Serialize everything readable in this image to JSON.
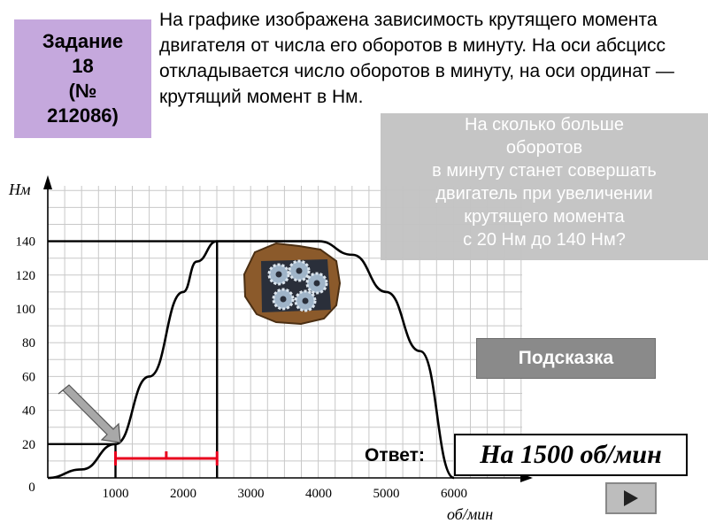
{
  "task": {
    "line1": "Задание",
    "line2": "18",
    "line3": "(№",
    "line4": "212086)"
  },
  "problem": {
    "text": "На графике изображена зависимость крутящего момента двигателя от числа его оборотов в минуту. На оси абсцисс откладывается число оборотов в минуту, на оси ординат — крутящий момент в Нм."
  },
  "question": {
    "lines": [
      "На сколько больше",
      "оборотов",
      "в минуту станет совершать",
      "двигатель при увеличении",
      "крутящего момента",
      "с 20 Нм до 140 Нм?"
    ]
  },
  "hint_label": "Подсказка",
  "answer": {
    "label": "Ответ:",
    "value": "На 1500 об/мин"
  },
  "next_icon": "play-right-icon",
  "colors": {
    "task_box": "#c5a8dd",
    "question_box": "#c3c3c3",
    "hint_button": "#8a8a8a",
    "bracket": "#e8001c"
  },
  "chart_data": {
    "type": "line",
    "xlabel": "об/мин",
    "ylabel": "Нм",
    "xlim": [
      0,
      6400
    ],
    "ylim": [
      0,
      150
    ],
    "x_ticks": [
      "0",
      "1000",
      "2000",
      "3000",
      "4000",
      "5000",
      "6000"
    ],
    "y_ticks": [
      "20",
      "40",
      "60",
      "80",
      "100",
      "120",
      "140"
    ],
    "grid": true,
    "series": [
      {
        "x": [
          0,
          500,
          1000,
          1500,
          2000,
          2200,
          2500,
          3000,
          3500,
          4000,
          4500,
          5000,
          5500,
          6000
        ],
        "y": [
          0,
          5,
          20,
          60,
          110,
          128,
          140,
          140,
          140,
          140,
          132,
          110,
          75,
          0
        ]
      }
    ],
    "annotations": [
      {
        "type": "guide",
        "from_y": 20,
        "to_x": 1000
      },
      {
        "type": "guide",
        "from_y": 140,
        "to_x": 2500
      },
      {
        "type": "bracket",
        "x_from": 1000,
        "x_to": 2500
      }
    ]
  }
}
